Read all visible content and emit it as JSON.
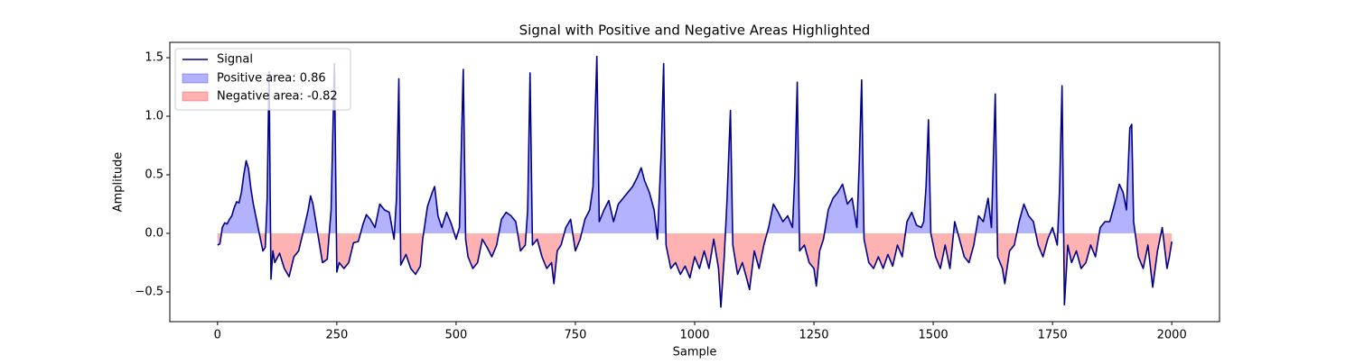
{
  "chart_data": {
    "type": "line",
    "title": "Signal with Positive and Negative Areas Highlighted",
    "x_label": "Sample",
    "y_label": "Amplitude",
    "x": [
      0,
      5,
      10,
      15,
      20,
      25,
      30,
      35,
      40,
      45,
      50,
      55,
      60,
      65,
      70,
      75,
      80,
      85,
      90,
      95,
      100,
      104,
      108,
      112,
      116,
      120,
      130,
      140,
      150,
      160,
      170,
      180,
      190,
      195,
      200,
      210,
      220,
      230,
      238,
      245,
      250,
      255,
      265,
      275,
      285,
      295,
      305,
      312,
      320,
      330,
      340,
      350,
      360,
      370,
      375,
      380,
      384,
      395,
      405,
      415,
      425,
      430,
      440,
      450,
      455,
      462,
      470,
      480,
      490,
      500,
      507,
      515,
      520,
      525,
      535,
      545,
      555,
      565,
      575,
      585,
      595,
      605,
      615,
      625,
      635,
      645,
      650,
      655,
      660,
      670,
      680,
      690,
      700,
      705,
      712,
      720,
      730,
      740,
      750,
      760,
      770,
      780,
      787,
      795,
      800,
      810,
      820,
      830,
      840,
      850,
      860,
      870,
      880,
      888,
      895,
      905,
      915,
      922,
      930,
      935,
      940,
      950,
      960,
      970,
      980,
      990,
      1000,
      1010,
      1020,
      1030,
      1040,
      1050,
      1055,
      1062,
      1068,
      1075,
      1080,
      1090,
      1100,
      1110,
      1115,
      1125,
      1135,
      1145,
      1155,
      1165,
      1175,
      1185,
      1195,
      1205,
      1210,
      1215,
      1220,
      1230,
      1240,
      1250,
      1255,
      1262,
      1270,
      1280,
      1290,
      1300,
      1310,
      1320,
      1330,
      1340,
      1345,
      1350,
      1355,
      1365,
      1375,
      1385,
      1395,
      1405,
      1415,
      1425,
      1435,
      1445,
      1455,
      1465,
      1475,
      1480,
      1485,
      1490,
      1495,
      1505,
      1515,
      1525,
      1535,
      1545,
      1555,
      1565,
      1575,
      1585,
      1595,
      1605,
      1615,
      1622,
      1630,
      1635,
      1645,
      1650,
      1660,
      1670,
      1680,
      1690,
      1700,
      1710,
      1720,
      1730,
      1740,
      1750,
      1760,
      1765,
      1770,
      1775,
      1782,
      1790,
      1800,
      1810,
      1820,
      1830,
      1840,
      1850,
      1860,
      1870,
      1880,
      1890,
      1898,
      1905,
      1912,
      1916,
      1920,
      1930,
      1940,
      1950,
      1960,
      1970,
      1980,
      1990,
      1995,
      2000
    ],
    "series": [
      {
        "name": "Signal",
        "color": "#00008b",
        "values": [
          -0.1,
          -0.09,
          0.05,
          0.09,
          0.08,
          0.12,
          0.15,
          0.22,
          0.27,
          0.26,
          0.35,
          0.5,
          0.62,
          0.55,
          0.38,
          0.25,
          0.15,
          0.05,
          -0.05,
          -0.15,
          -0.12,
          0.3,
          1.38,
          -0.39,
          -0.15,
          -0.25,
          -0.17,
          -0.3,
          -0.37,
          -0.2,
          -0.15,
          0.02,
          0.2,
          0.32,
          0.25,
          0.0,
          -0.25,
          -0.22,
          0.2,
          1.45,
          -0.33,
          -0.25,
          -0.3,
          -0.25,
          -0.08,
          -0.07,
          0.08,
          0.16,
          0.12,
          0.05,
          0.25,
          0.2,
          0.18,
          -0.05,
          0.3,
          1.32,
          -0.27,
          -0.18,
          -0.3,
          -0.35,
          -0.28,
          -0.05,
          0.23,
          0.35,
          0.4,
          0.15,
          0.05,
          0.18,
          0.08,
          -0.05,
          0.05,
          1.4,
          -0.05,
          -0.2,
          -0.3,
          -0.25,
          -0.05,
          -0.12,
          -0.2,
          -0.1,
          0.12,
          0.18,
          0.15,
          0.1,
          -0.15,
          -0.1,
          0.2,
          1.37,
          -0.1,
          -0.05,
          -0.2,
          -0.3,
          -0.25,
          -0.43,
          -0.15,
          -0.1,
          0.05,
          0.12,
          -0.15,
          -0.05,
          0.12,
          0.2,
          0.4,
          1.51,
          0.1,
          0.2,
          0.28,
          0.1,
          0.25,
          0.3,
          0.35,
          0.4,
          0.48,
          0.56,
          0.45,
          0.35,
          0.2,
          -0.05,
          0.7,
          1.45,
          -0.1,
          -0.3,
          -0.25,
          -0.35,
          -0.28,
          -0.38,
          -0.2,
          -0.3,
          -0.15,
          -0.3,
          -0.05,
          -0.3,
          -0.63,
          -0.2,
          0.3,
          1.05,
          -0.1,
          -0.35,
          -0.25,
          -0.4,
          -0.48,
          -0.15,
          -0.3,
          -0.1,
          0.05,
          0.25,
          0.18,
          0.1,
          0.15,
          0.05,
          0.5,
          1.29,
          -0.15,
          -0.1,
          -0.25,
          -0.3,
          -0.45,
          -0.15,
          -0.05,
          0.2,
          0.3,
          0.35,
          0.42,
          0.25,
          0.3,
          0.05,
          0.6,
          1.31,
          -0.05,
          -0.25,
          -0.3,
          -0.2,
          -0.3,
          -0.18,
          -0.28,
          -0.1,
          -0.2,
          0.1,
          0.18,
          0.07,
          0.05,
          0.1,
          0.4,
          0.97,
          0.0,
          -0.2,
          -0.3,
          -0.1,
          -0.3,
          0.1,
          -0.05,
          -0.2,
          -0.25,
          -0.1,
          0.15,
          0.1,
          0.3,
          0.05,
          1.19,
          -0.2,
          -0.3,
          -0.43,
          -0.15,
          -0.1,
          0.1,
          0.25,
          0.15,
          0.1,
          -0.1,
          -0.2,
          -0.05,
          0.05,
          -0.1,
          0.4,
          1.26,
          -0.61,
          -0.1,
          -0.25,
          -0.15,
          -0.3,
          -0.25,
          -0.1,
          -0.2,
          0.05,
          0.1,
          0.1,
          0.25,
          0.42,
          0.35,
          0.2,
          0.9,
          0.93,
          0.1,
          -0.2,
          -0.3,
          -0.1,
          -0.46,
          -0.15,
          0.05,
          -0.3,
          -0.2,
          -0.07
        ]
      }
    ],
    "positive_fill": {
      "name": "Positive area: 0.86",
      "color": "#0000ff"
    },
    "negative_fill": {
      "name": "Negative area: -0.82",
      "color": "#ff0000"
    },
    "xlim": [
      -100,
      2100
    ],
    "ylim": [
      -0.754,
      1.631
    ],
    "xticks": [
      0,
      250,
      500,
      750,
      1000,
      1250,
      1500,
      1750,
      2000
    ],
    "yticks": [
      {
        "value": -0.5,
        "label": "−0.5"
      },
      {
        "value": 0,
        "label": "0.0"
      },
      0.5,
      {
        "value": 1,
        "label": "1.0"
      },
      1.5
    ],
    "legend": "upper left"
  }
}
